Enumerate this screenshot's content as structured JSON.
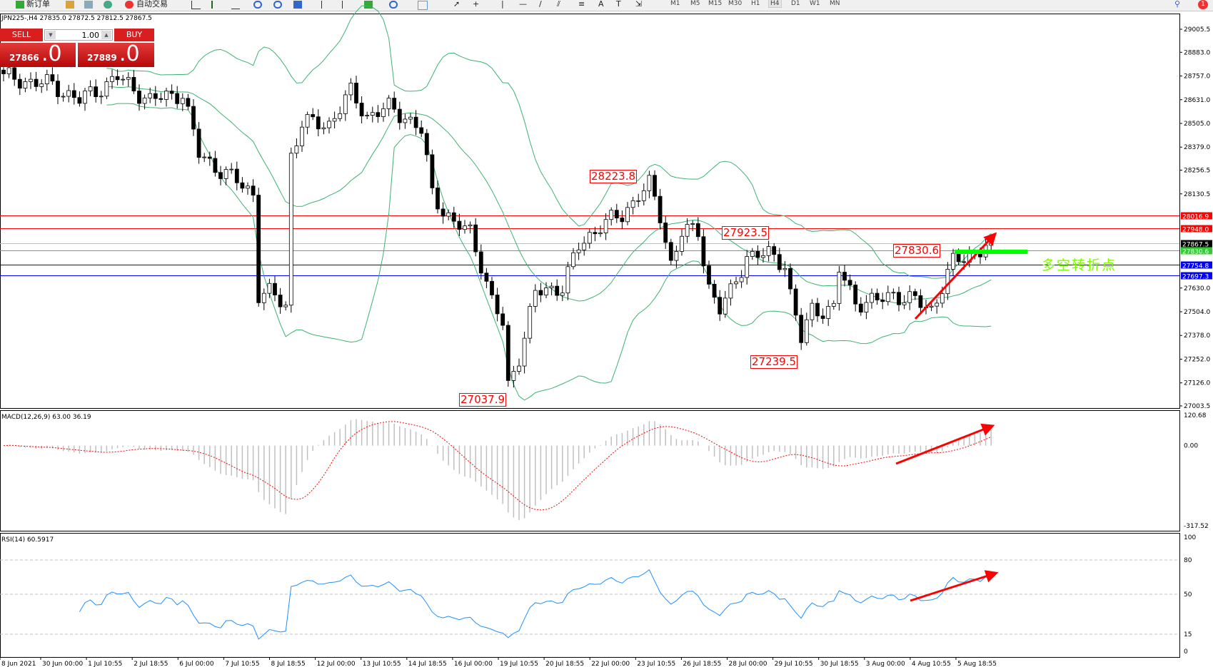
{
  "toolbar": {
    "new_order": "新订单",
    "auto_trading": "自动交易",
    "timeframes": [
      "M1",
      "M5",
      "M15",
      "M30",
      "H1",
      "H4",
      "D1",
      "W1",
      "MN"
    ],
    "active_timeframe": "H4",
    "notification_count": "1"
  },
  "chart": {
    "title": "JPN225-,H4  27835.0 27872.5 27812.5 27867.5",
    "symbol": "JPN225-",
    "period": "H4"
  },
  "trade_panel": {
    "sell_label": "SELL",
    "buy_label": "BUY",
    "lot": "1.00",
    "sell_price_main": "27866",
    "sell_price_frac": ".0",
    "buy_price_main": "27889",
    "buy_price_frac": ".0"
  },
  "annotations": {
    "labels": [
      "28223.8",
      "27923.5",
      "27830.6",
      "27239.5",
      "27037.9"
    ],
    "pivot_text": "多空转折点"
  },
  "colors": {
    "band": "#3cb371",
    "macd_signal": "#ff0000",
    "macd_hist": "#c0c0c0",
    "rsi": "#1e90ff",
    "resistance": "#ff0000",
    "support": "#0000ff",
    "pivot": "#00ff00",
    "arrow": "#ff0000"
  },
  "chart_data": {
    "type": "candlestick",
    "price_axis": [
      "29005.5",
      "28883.0",
      "28757.0",
      "28631.0",
      "28505.0",
      "28379.0",
      "28256.5",
      "28130.5",
      "27630.0",
      "27504.0",
      "27378.0",
      "27252.0",
      "27126.0",
      "27003.5"
    ],
    "price_range": [
      27003.5,
      29005.5
    ],
    "close_path": [
      [
        0,
        28750
      ],
      [
        9,
        28709
      ],
      [
        14,
        28627
      ],
      [
        21,
        28750
      ],
      [
        27,
        28627
      ],
      [
        33,
        28668
      ],
      [
        36,
        28339
      ],
      [
        40,
        28257
      ],
      [
        46,
        28134
      ],
      [
        47,
        27600
      ],
      [
        49,
        27600
      ],
      [
        52,
        27538
      ],
      [
        53,
        28339
      ],
      [
        55,
        28504
      ],
      [
        60,
        28504
      ],
      [
        64,
        28668
      ],
      [
        67,
        28545
      ],
      [
        71,
        28586
      ],
      [
        74,
        28545
      ],
      [
        77,
        28462
      ],
      [
        79,
        28134
      ],
      [
        83,
        27969
      ],
      [
        86,
        27928
      ],
      [
        88,
        27764
      ],
      [
        90,
        27558
      ],
      [
        92,
        27435
      ],
      [
        93,
        27106
      ],
      [
        95,
        27271
      ],
      [
        98,
        27600
      ],
      [
        103,
        27641
      ],
      [
        106,
        27846
      ],
      [
        110,
        27969
      ],
      [
        114,
        28010
      ],
      [
        117,
        28134
      ],
      [
        119,
        28175
      ],
      [
        121,
        28010
      ],
      [
        123,
        27764
      ],
      [
        125,
        27928
      ],
      [
        128,
        27928
      ],
      [
        130,
        27641
      ],
      [
        132,
        27517
      ],
      [
        134,
        27600
      ],
      [
        137,
        27805
      ],
      [
        141,
        27805
      ],
      [
        144,
        27764
      ],
      [
        145,
        27600
      ],
      [
        147,
        27353
      ],
      [
        149,
        27517
      ],
      [
        153,
        27517
      ],
      [
        154,
        27723
      ],
      [
        157,
        27558
      ],
      [
        161,
        27558
      ],
      [
        164,
        27600
      ],
      [
        168,
        27558
      ],
      [
        171,
        27517
      ],
      [
        173,
        27641
      ],
      [
        175,
        27764
      ],
      [
        178,
        27805
      ],
      [
        182,
        27868
      ]
    ],
    "hlines": [
      {
        "value": "28016.9",
        "color": "#ff0000"
      },
      {
        "value": "27948.0",
        "color": "#ff0000"
      },
      {
        "value": "27867.5",
        "color": "#c0c0c0",
        "tag_color": "#000000"
      },
      {
        "value": "27830.6",
        "color": "#32cd32"
      },
      {
        "value": "27754.8",
        "color": "#0000ff"
      },
      {
        "value": "27697.3",
        "color": "#0000ff"
      }
    ],
    "time_axis": [
      "8 Jun 2021",
      "30 Jun 00:00",
      "1 Jul 10:55",
      "2 Jul 18:55",
      "6 Jul 00:00",
      "7 Jul 10:55",
      "8 Jul 18:55",
      "12 Jul 00:00",
      "13 Jul 10:55",
      "14 Jul 18:55",
      "16 Jul 00:00",
      "19 Jul 10:55",
      "20 Jul 18:55",
      "22 Jul 00:00",
      "23 Jul 10:55",
      "26 Jul 18:55",
      "28 Jul 00:00",
      "29 Jul 10:55",
      "30 Jul 18:55",
      "3 Aug 00:00",
      "4 Aug 10:55",
      "5 Aug 18:55"
    ],
    "macd": {
      "label": "MACD(12,26,9) 63.00 36.19",
      "axis": [
        "120.68",
        "0.00",
        "-317.52"
      ],
      "range": [
        -317.52,
        120.68
      ]
    },
    "rsi": {
      "label": "RSI(14) 60.5917",
      "axis": [
        "100",
        "80",
        "50",
        "15",
        "0"
      ],
      "levels": [
        80,
        50,
        15
      ]
    }
  }
}
